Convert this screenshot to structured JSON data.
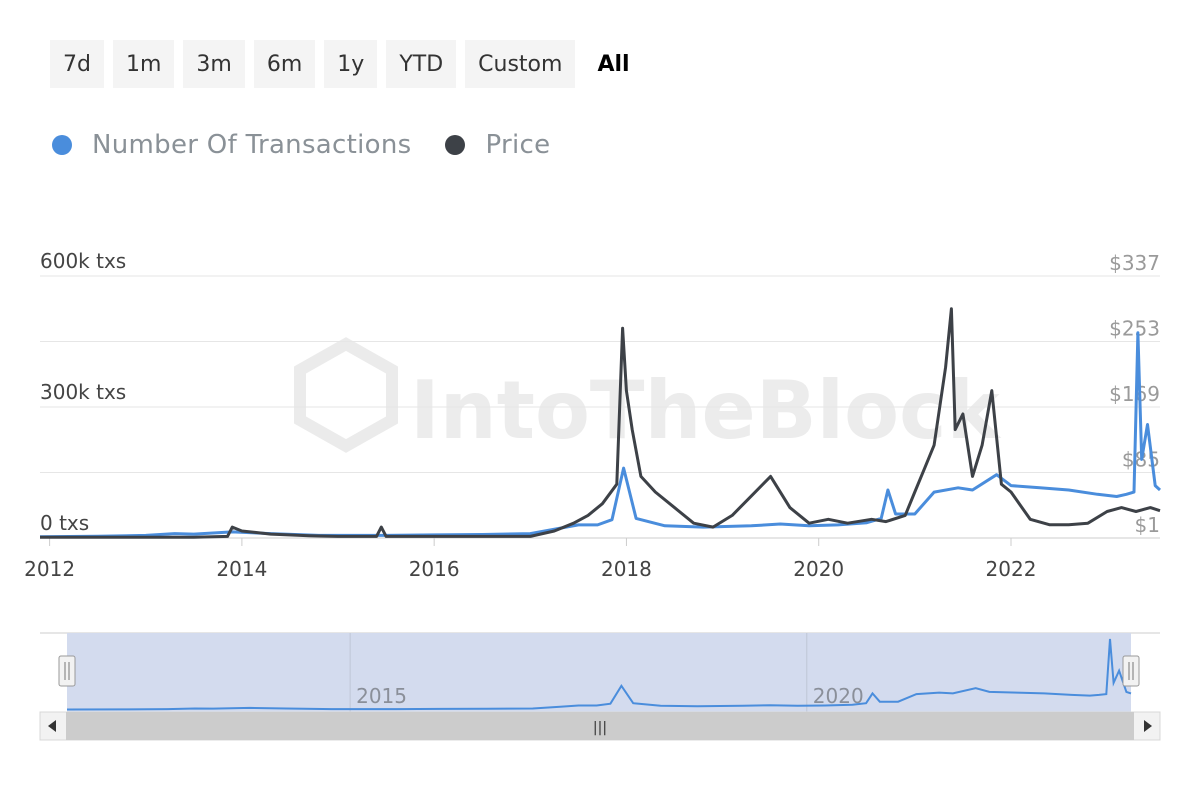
{
  "range_buttons": [
    "7d",
    "1m",
    "3m",
    "6m",
    "1y",
    "YTD",
    "Custom",
    "All"
  ],
  "active_range": "All",
  "watermark": "IntoTheBlock",
  "colors": {
    "transactions": "#4a8ddc",
    "price": "#3d4147",
    "grid": "#e6e6e6",
    "navigator_fill": "#d3dbee",
    "tick_text": "#444444",
    "right_tick_text": "#9a9a9a"
  },
  "chart_data": {
    "type": "line",
    "xlabel": "",
    "ylabel": "",
    "x_ticks": [
      "2012",
      "2014",
      "2016",
      "2018",
      "2020",
      "2022"
    ],
    "y_left_ticks": [
      "0 txs",
      "300k txs",
      "600k txs"
    ],
    "y_right_ticks": [
      "$1",
      "$85",
      "$169",
      "$253",
      "$337"
    ],
    "y_left_range": [
      0,
      600000
    ],
    "y_right_range": [
      1,
      337
    ],
    "x_range": [
      2011.9,
      2023.55
    ],
    "legend_placement": "top-left",
    "grid": true,
    "series": [
      {
        "name": "Number Of Transactions",
        "axis": "left",
        "x": [
          2011.9,
          2012.5,
          2013.0,
          2013.3,
          2013.5,
          2013.9,
          2014.3,
          2014.8,
          2015.5,
          2016.0,
          2016.5,
          2017.0,
          2017.3,
          2017.5,
          2017.7,
          2017.85,
          2017.97,
          2018.1,
          2018.4,
          2018.8,
          2019.3,
          2019.6,
          2019.9,
          2020.2,
          2020.5,
          2020.65,
          2020.72,
          2020.8,
          2021.0,
          2021.2,
          2021.45,
          2021.6,
          2021.85,
          2022.0,
          2022.3,
          2022.6,
          2022.9,
          2023.1,
          2023.2,
          2023.28,
          2023.32,
          2023.36,
          2023.42,
          2023.5,
          2023.55
        ],
        "values": [
          3000,
          4000,
          6000,
          10000,
          9000,
          14000,
          10000,
          6000,
          6000,
          7000,
          8000,
          10000,
          22000,
          30000,
          30000,
          42000,
          160000,
          45000,
          28000,
          25000,
          28000,
          32000,
          28000,
          30000,
          35000,
          45000,
          110000,
          55000,
          55000,
          105000,
          115000,
          110000,
          145000,
          120000,
          115000,
          110000,
          100000,
          95000,
          100000,
          105000,
          470000,
          180000,
          260000,
          120000,
          110000
        ]
      },
      {
        "name": "Price",
        "axis": "right",
        "x": [
          2011.9,
          2012.5,
          2013.0,
          2013.5,
          2013.85,
          2013.9,
          2014.0,
          2014.3,
          2014.7,
          2015.0,
          2015.4,
          2015.45,
          2015.5,
          2015.9,
          2016.5,
          2017.0,
          2017.25,
          2017.45,
          2017.6,
          2017.75,
          2017.9,
          2017.96,
          2018.0,
          2018.06,
          2018.15,
          2018.3,
          2018.5,
          2018.7,
          2018.9,
          2019.1,
          2019.3,
          2019.5,
          2019.7,
          2019.9,
          2020.1,
          2020.3,
          2020.55,
          2020.7,
          2020.9,
          2021.0,
          2021.1,
          2021.2,
          2021.32,
          2021.38,
          2021.42,
          2021.5,
          2021.6,
          2021.7,
          2021.8,
          2021.9,
          2022.0,
          2022.2,
          2022.4,
          2022.6,
          2022.8,
          2023.0,
          2023.15,
          2023.3,
          2023.45,
          2023.55
        ],
        "values": [
          2,
          2,
          2,
          2,
          3,
          15,
          10,
          6,
          4,
          3,
          3,
          15,
          3,
          3,
          3,
          3,
          10,
          20,
          30,
          45,
          70,
          270,
          190,
          140,
          80,
          60,
          40,
          20,
          15,
          30,
          55,
          80,
          40,
          20,
          25,
          20,
          25,
          22,
          30,
          60,
          90,
          120,
          220,
          295,
          140,
          160,
          80,
          120,
          190,
          70,
          60,
          25,
          18,
          18,
          20,
          35,
          40,
          35,
          40,
          36
        ]
      }
    ]
  },
  "navigator": {
    "labels": [
      "2015",
      "2020"
    ],
    "scroll_grip": "|||"
  }
}
